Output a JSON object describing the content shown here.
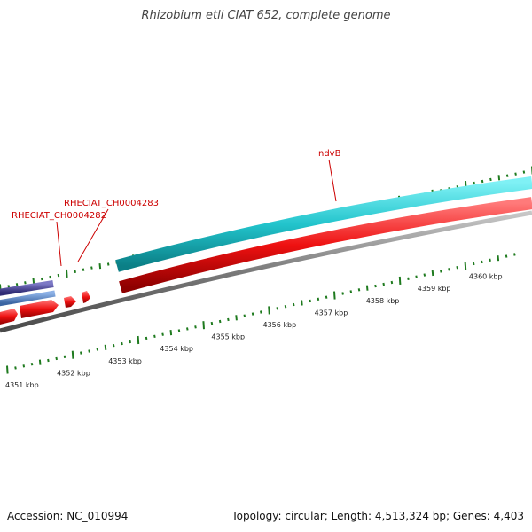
{
  "title": "Rhizobium etli CIAT 652, complete genome",
  "footer": {
    "accession": "Accession: NC_010994",
    "summary": "Topology: circular; Length: 4,513,324 bp; Genes: 4,403"
  },
  "gene_labels": [
    {
      "id": "ndvB",
      "text": "ndvB"
    },
    {
      "id": "RHECIAT_CH0004283",
      "text": "RHECIAT_CH0004283"
    },
    {
      "id": "RHECIAT_CH0004282",
      "text": "RHECIAT_CH0004282"
    }
  ],
  "ruler_labels": [
    "4351 kbp",
    "4352 kbp",
    "4353 kbp",
    "4354 kbp",
    "4355 kbp",
    "4356 kbp",
    "4357 kbp",
    "4358 kbp",
    "4359 kbp",
    "4360 kbp"
  ],
  "colors": {
    "forward_cds": "#22c4cc",
    "reverse_cds": "#ee1111",
    "backbone": "#7a7a7a",
    "tick": "#1e7a1e",
    "label_red": "#cc0000",
    "dark_blue": "#4a4699",
    "light_blue": "#5b86c4"
  }
}
